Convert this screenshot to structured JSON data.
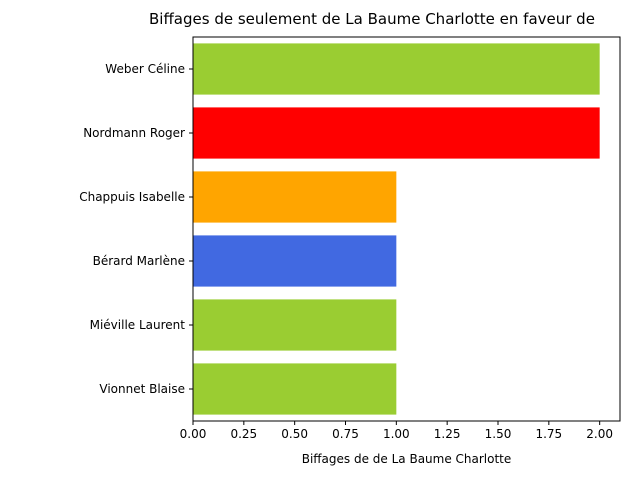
{
  "chart_data": {
    "type": "bar",
    "orientation": "horizontal",
    "title": "Biffages de seulement de La Baume Charlotte en faveur de",
    "xlabel": "Biffages de de La Baume Charlotte",
    "ylabel": "",
    "categories": [
      "Weber Céline",
      "Nordmann Roger",
      "Chappuis Isabelle",
      "Bérard Marlène",
      "Miéville Laurent",
      "Vionnet Blaise"
    ],
    "values": [
      2,
      2,
      1,
      1,
      1,
      1
    ],
    "colors": [
      "#9acd32",
      "#ff0000",
      "#ffa500",
      "#4169e1",
      "#9acd32",
      "#9acd32"
    ],
    "xlim": [
      0,
      2.1
    ],
    "xticks": [
      "0.00",
      "0.25",
      "0.50",
      "0.75",
      "1.00",
      "1.25",
      "1.50",
      "1.75",
      "2.00"
    ],
    "grid": false,
    "legend": "none"
  }
}
